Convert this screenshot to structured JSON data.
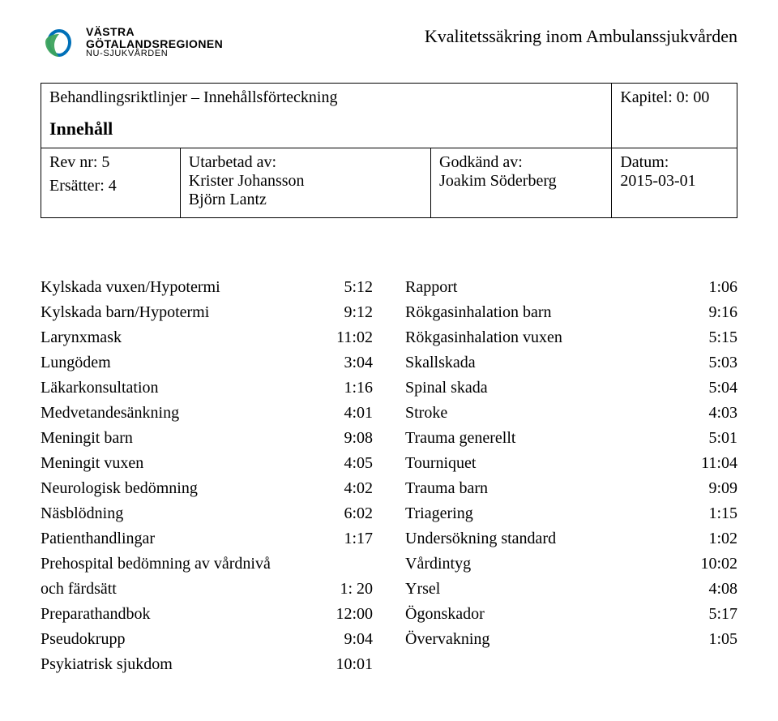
{
  "header": {
    "topRightTitle": "Kvalitetssäkring inom Ambulanssjukvården",
    "logoText1": "VÄSTRA",
    "logoText2": "GÖTALANDSREGIONEN",
    "logoText3": "NU-SJUKVÅRDEN"
  },
  "meta": {
    "titleLine1": "Behandlingsriktlinjer – Innehållsförteckning",
    "titleLine2": "Innehåll",
    "chapter": "Kapitel: 0: 00",
    "revLabel": "Rev nr: 5",
    "replacesLabel": "Ersätter: 4",
    "authoredLabel": "Utarbetad av:",
    "author1": "Krister Johansson",
    "author2": "Björn Lantz",
    "approvedLabel": "Godkänd av:",
    "approver": "Joakim Söderberg",
    "dateLabel": "Datum:",
    "date": "2015-03-01"
  },
  "leftEntries": [
    {
      "label": "Kylskada vuxen/Hypotermi",
      "value": "5:12"
    },
    {
      "label": "Kylskada barn/Hypotermi",
      "value": "9:12"
    },
    {
      "label": "Larynxmask",
      "value": "11:02"
    },
    {
      "label": "Lungödem",
      "value": "3:04"
    },
    {
      "label": "Läkarkonsultation",
      "value": "1:16"
    },
    {
      "label": "Medvetandesänkning",
      "value": "4:01"
    },
    {
      "label": "Meningit barn",
      "value": "9:08"
    },
    {
      "label": "Meningit vuxen",
      "value": "4:05"
    },
    {
      "label": "Neurologisk bedömning",
      "value": "4:02"
    },
    {
      "label": "Näsblödning",
      "value": "6:02"
    },
    {
      "label": "Patienthandlingar",
      "value": "1:17"
    }
  ],
  "leftMultiline": {
    "line1": "Prehospital bedömning av vårdnivå",
    "line2label": "och färdsätt",
    "line2value": "1: 20"
  },
  "leftEntriesCont": [
    {
      "label": "Preparathandbok",
      "value": "12:00"
    },
    {
      "label": "Pseudokrupp",
      "value": "9:04"
    },
    {
      "label": "Psykiatrisk sjukdom",
      "value": "10:01"
    }
  ],
  "rightEntries": [
    {
      "label": "Rapport",
      "value": "1:06"
    },
    {
      "label": "Rökgasinhalation barn",
      "value": "9:16"
    },
    {
      "label": "Rökgasinhalation vuxen",
      "value": "5:15"
    },
    {
      "label": "Skallskada",
      "value": "5:03"
    },
    {
      "label": "Spinal skada",
      "value": "5:04"
    },
    {
      "label": "Stroke",
      "value": "4:03"
    },
    {
      "label": "Trauma generellt",
      "value": "5:01"
    },
    {
      "label": "Tourniquet",
      "value": "11:04"
    },
    {
      "label": "Trauma barn",
      "value": "9:09"
    },
    {
      "label": "Triagering",
      "value": "1:15"
    },
    {
      "label": "Undersökning standard",
      "value": "1:02"
    },
    {
      "label": "Vårdintyg",
      "value": "10:02"
    },
    {
      "label": "Yrsel",
      "value": "4:08"
    },
    {
      "label": "Ögonskador",
      "value": "5:17"
    },
    {
      "label": "Övervakning",
      "value": "1:05"
    }
  ],
  "colors": {
    "logoBlue": "#0070b8",
    "logoGreen": "#3da35d",
    "text": "#000000",
    "background": "#ffffff"
  }
}
